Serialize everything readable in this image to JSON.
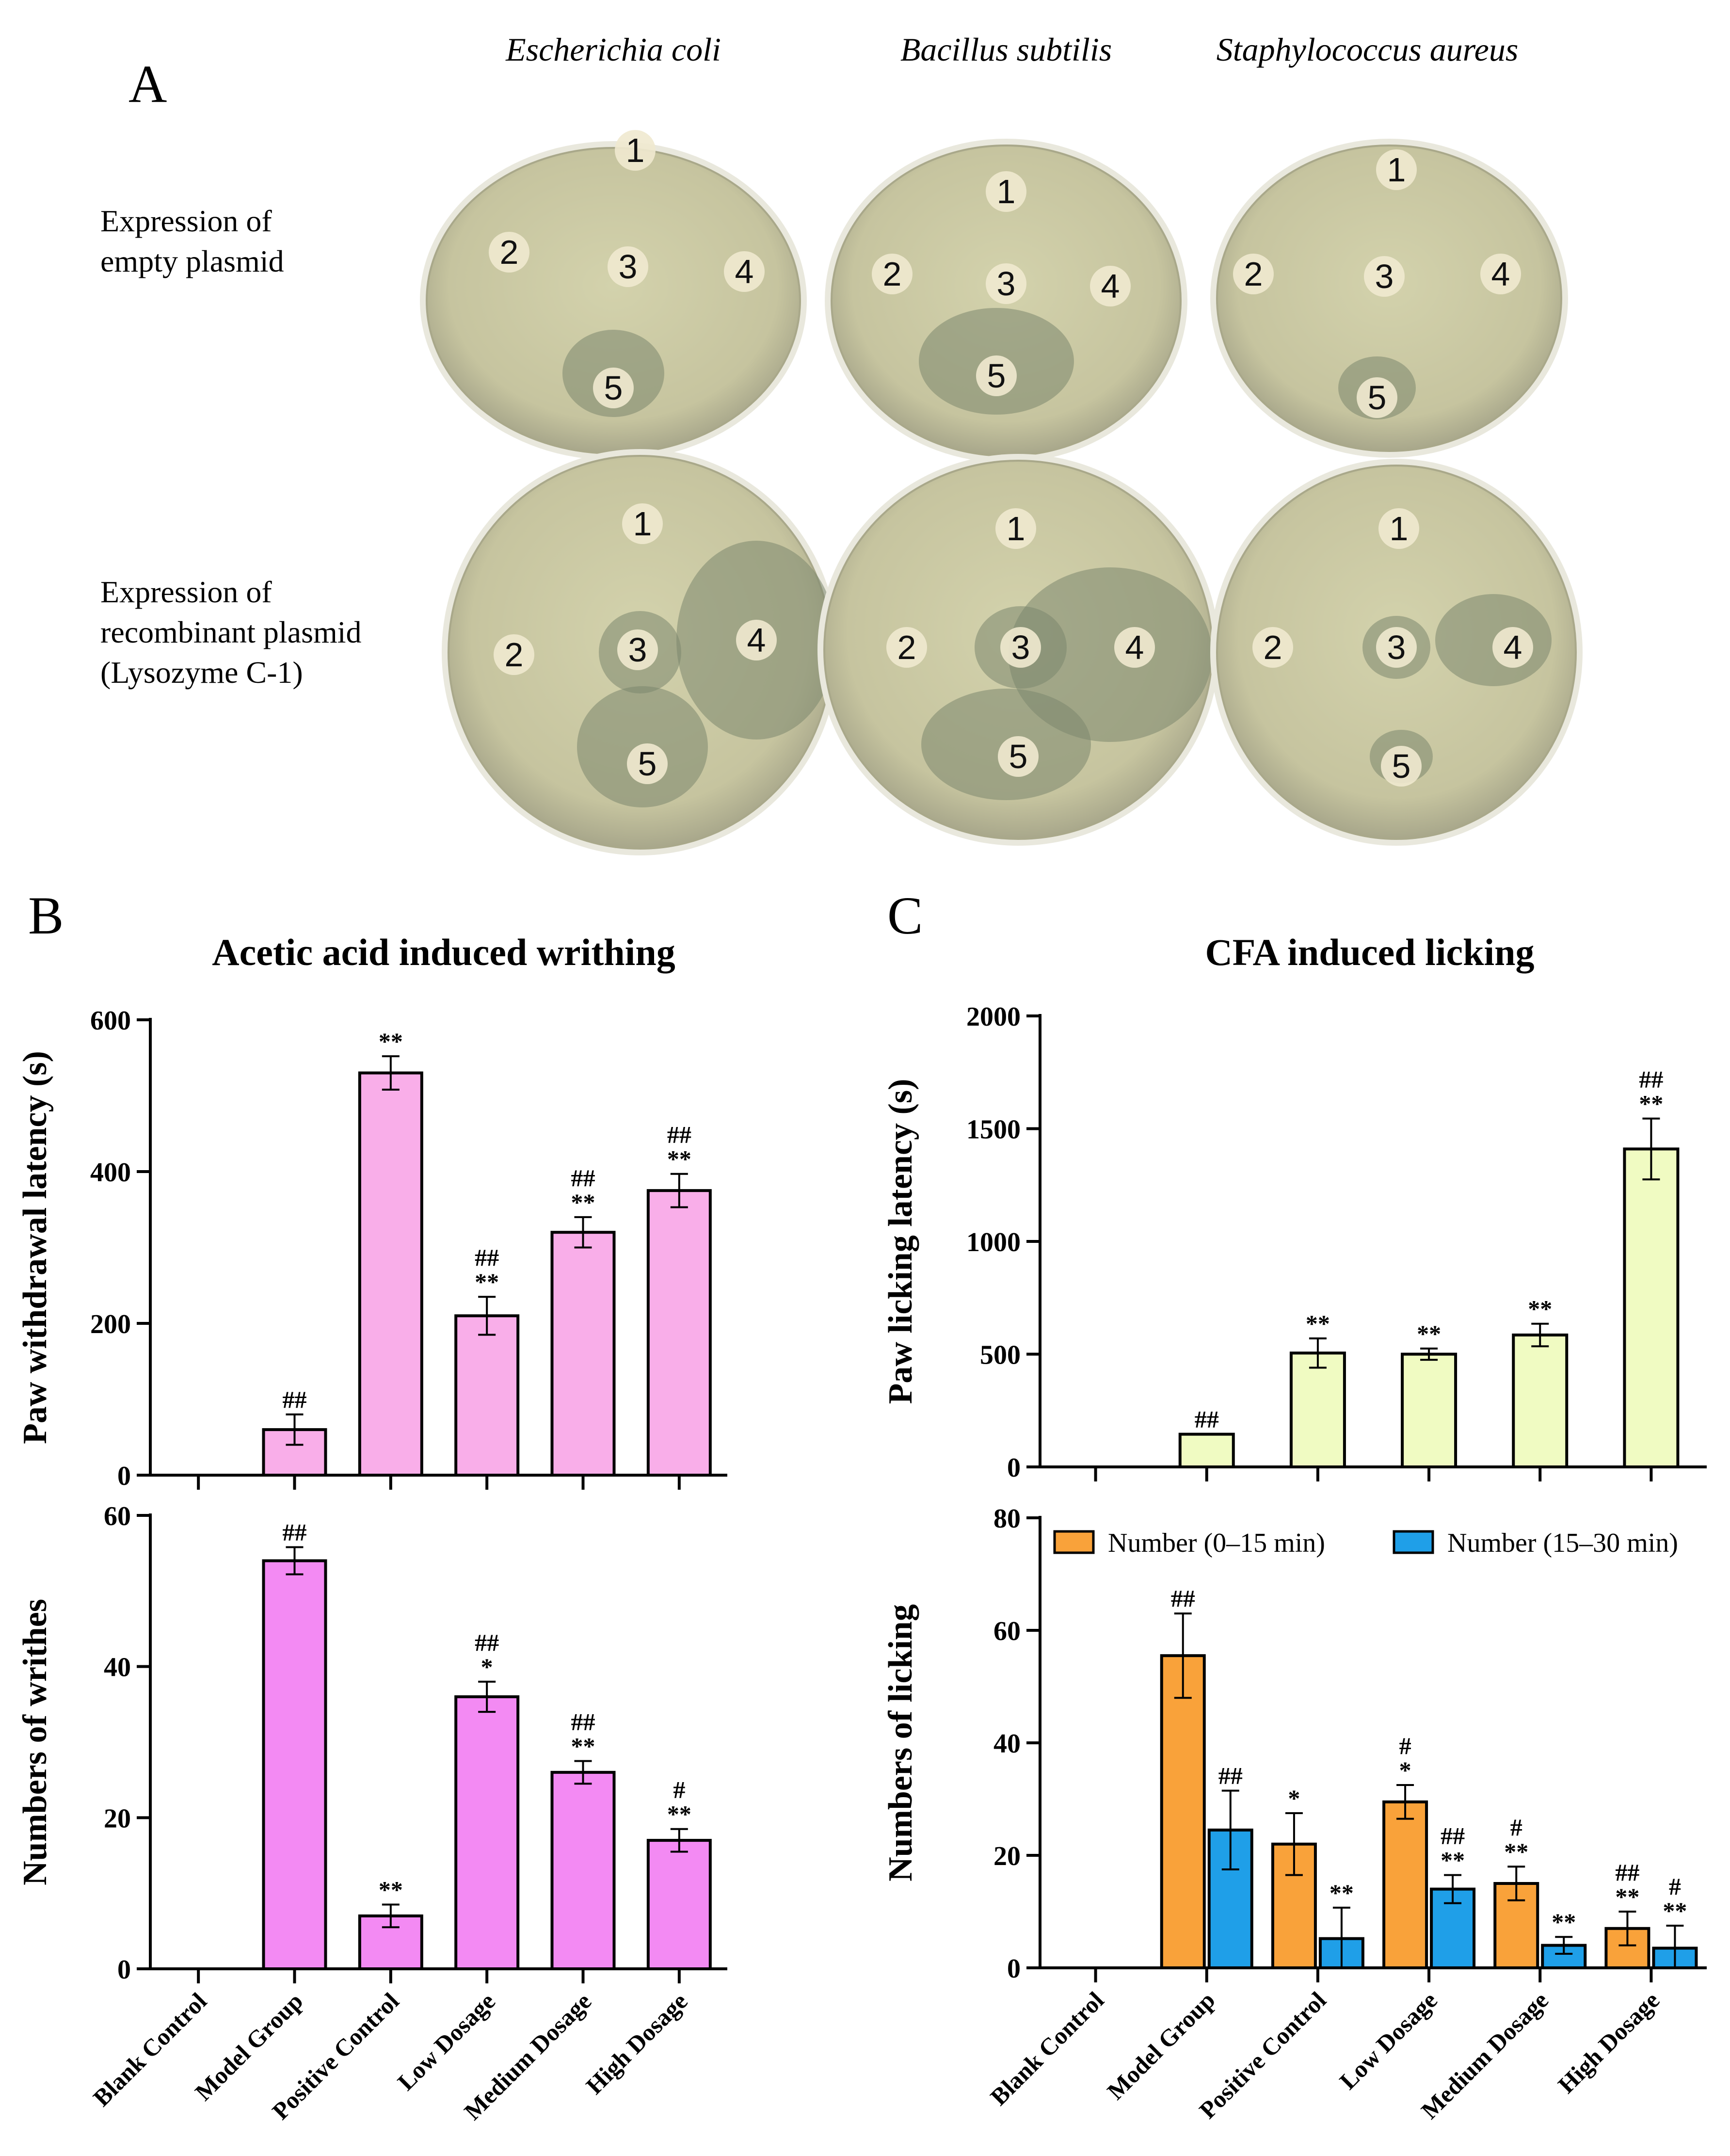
{
  "panel_a": {
    "label": "A",
    "organisms": [
      "Escherichia coli",
      "Bacillus subtilis",
      "Staphylococcus aureus"
    ],
    "row_labels": [
      [
        "Expression of",
        "empty plasmid"
      ],
      [
        "Expression of",
        "recombinant plasmid",
        "(Lysozyme C-1)"
      ]
    ],
    "well_labels": [
      "1",
      "2",
      "3",
      "4",
      "5"
    ],
    "colors": {
      "agar": "#c9c8a2",
      "agar_edge": "#a9a88a",
      "zone": "#7c876e",
      "well": "#efe9cf"
    }
  },
  "panel_b": {
    "label": "B",
    "title": "Acetic acid induced writhing"
  },
  "panel_c": {
    "label": "C",
    "title": "CFA induced licking"
  },
  "chart_data": [
    {
      "id": "b-top",
      "type": "bar",
      "categories": [
        "Blank Control",
        "Model Group",
        "Positive Control",
        "Low Dosage",
        "Medium Dosage",
        "High Dosage"
      ],
      "series": [
        {
          "name": "Paw withdrawal latency",
          "values": [
            0,
            60,
            530,
            210,
            320,
            375
          ],
          "errors": [
            0,
            20,
            22,
            25,
            20,
            22
          ],
          "color": "#f9aee9"
        }
      ],
      "annotations": [
        [],
        [
          "##"
        ],
        [
          "**"
        ],
        [
          "##",
          "**"
        ],
        [
          "##",
          "**"
        ],
        [
          "##",
          "**"
        ]
      ],
      "ylabel": "Paw withdrawal latency (s)",
      "ylim": [
        0,
        600
      ],
      "yticks": [
        0,
        200,
        400,
        600
      ]
    },
    {
      "id": "b-bottom",
      "type": "bar",
      "categories": [
        "Blank Control",
        "Model Group",
        "Positive Control",
        "Low Dosage",
        "Medium Dosage",
        "High Dosage"
      ],
      "series": [
        {
          "name": "Numbers of writhes",
          "values": [
            0,
            54,
            7,
            36,
            26,
            17
          ],
          "errors": [
            0,
            1.8,
            1.5,
            2.0,
            1.5,
            1.5
          ],
          "color": "#f38af3"
        }
      ],
      "annotations": [
        [],
        [
          "##"
        ],
        [
          "**"
        ],
        [
          "##",
          "*"
        ],
        [
          "##",
          "**"
        ],
        [
          "#",
          "**"
        ]
      ],
      "ylabel": "Numbers of writhes",
      "ylim": [
        0,
        60
      ],
      "yticks": [
        0,
        20,
        40,
        60
      ]
    },
    {
      "id": "c-top",
      "type": "bar",
      "categories": [
        "Blank Control",
        "Model Group",
        "Positive Control",
        "Low Dosage",
        "Medium Dosage",
        "High Dosage"
      ],
      "series": [
        {
          "name": "Paw licking latency",
          "values": [
            0,
            145,
            505,
            500,
            585,
            1410
          ],
          "errors": [
            0,
            0,
            65,
            25,
            50,
            135
          ],
          "color": "#f0fbc2"
        }
      ],
      "annotations": [
        [],
        [
          "##"
        ],
        [
          "**"
        ],
        [
          "**"
        ],
        [
          "**"
        ],
        [
          "##",
          "**"
        ]
      ],
      "ylabel": "Paw licking latency (s)",
      "ylim": [
        0,
        2000
      ],
      "yticks": [
        0,
        500,
        1000,
        1500,
        2000
      ]
    },
    {
      "id": "c-bottom",
      "type": "bar",
      "categories": [
        "Blank Control",
        "Model Group",
        "Positive Control",
        "Low Dosage",
        "Medium Dosage",
        "High Dosage"
      ],
      "series": [
        {
          "name": "Number (0–15 min)",
          "values": [
            0,
            55.5,
            22,
            29.5,
            15,
            7
          ],
          "errors": [
            0,
            7.5,
            5.5,
            3,
            3,
            3
          ],
          "color": "#f9a23a",
          "annotations": [
            [],
            [
              "##"
            ],
            [
              "*"
            ],
            [
              "#",
              "*"
            ],
            [
              "#",
              "**"
            ],
            [
              "##",
              "**"
            ]
          ]
        },
        {
          "name": "Number (15–30 min)",
          "values": [
            0,
            24.5,
            5.2,
            14,
            4,
            3.5
          ],
          "errors": [
            0,
            7,
            5.5,
            2.5,
            1.5,
            4
          ],
          "color": "#1f9fe8",
          "annotations": [
            [],
            [
              "##"
            ],
            [
              "**"
            ],
            [
              "##",
              "**"
            ],
            [
              "**"
            ],
            [
              "#",
              "**"
            ]
          ]
        }
      ],
      "ylabel": "Numbers of licking",
      "ylim": [
        0,
        80
      ],
      "yticks": [
        0,
        20,
        40,
        60,
        80
      ],
      "legend": "top"
    }
  ]
}
